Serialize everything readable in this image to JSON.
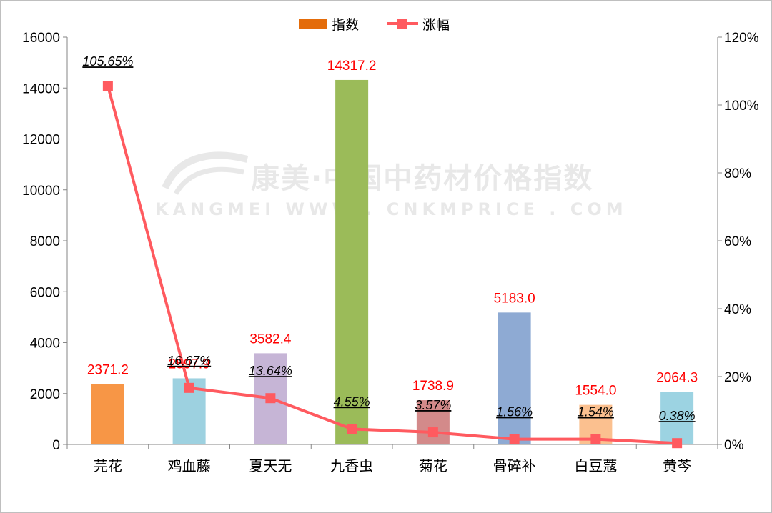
{
  "chart_data": {
    "type": "bar+line",
    "categories": [
      "芫花",
      "鸡血藤",
      "夏天无",
      "九香虫",
      "菊花",
      "骨碎补",
      "白豆蔻",
      "黄芩"
    ],
    "series": [
      {
        "name": "指数",
        "type": "bar",
        "axis": "left",
        "values": [
          2371.2,
          2597.9,
          3582.4,
          14317.2,
          1738.9,
          5183.0,
          1554.0,
          2064.3
        ],
        "labels": [
          "2371.2",
          "2597.9",
          "3582.4",
          "14317.2",
          "1738.9",
          "5183.0",
          "1554.0",
          "2064.3"
        ],
        "colors": [
          "#f79646",
          "#9dd1e0",
          "#c6b5d6",
          "#9bbb59",
          "#d38a8a",
          "#8eaad3",
          "#fbc08f",
          "#9cd3e2"
        ]
      },
      {
        "name": "涨幅",
        "type": "line",
        "axis": "right",
        "values": [
          105.65,
          16.67,
          13.64,
          4.55,
          3.57,
          1.56,
          1.54,
          0.38
        ],
        "labels": [
          "105.65%",
          "16.67%",
          "13.64%",
          "4.55%",
          "3.57%",
          "1.56%",
          "1.54%",
          "0.38%"
        ],
        "color": "#ff5a5f"
      }
    ],
    "y_left": {
      "min": 0,
      "max": 16000,
      "ticks": [
        "0",
        "2000",
        "4000",
        "6000",
        "8000",
        "10000",
        "12000",
        "14000",
        "16000"
      ]
    },
    "y_right": {
      "min": 0,
      "max": 120,
      "ticks": [
        "0%",
        "20%",
        "40%",
        "60%",
        "80%",
        "100%",
        "120%"
      ]
    },
    "legend": {
      "position": "top-center",
      "items": [
        "指数",
        "涨幅"
      ],
      "bar_swatch_color": "#e46c0a"
    },
    "value_label_color": "#ff0000",
    "grid": false
  },
  "watermark": {
    "line1": "康美·中国中药材价格指数",
    "line2": "KANGMEI WWW . CNKMPRICE . COM"
  }
}
